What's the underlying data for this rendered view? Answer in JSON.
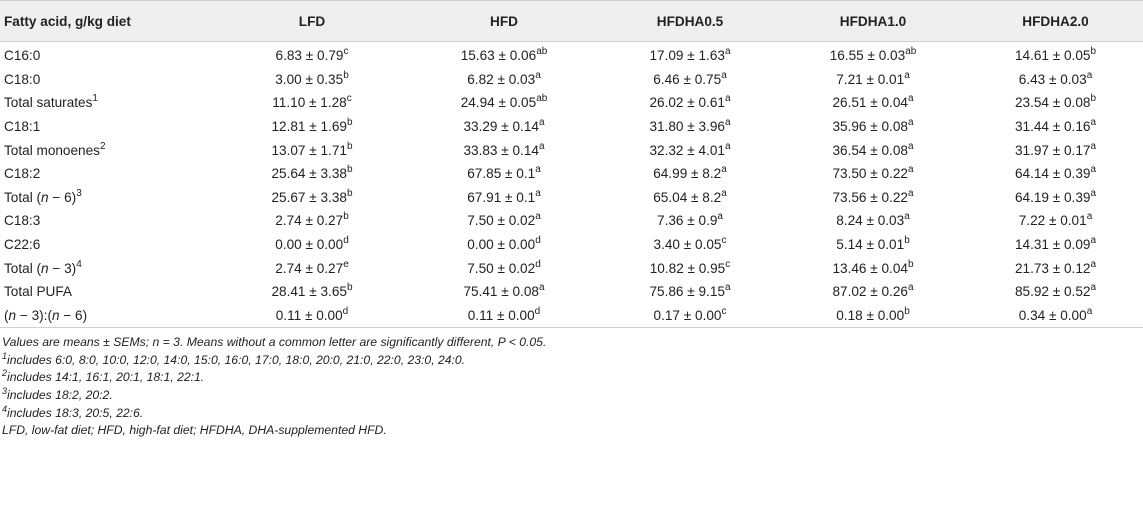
{
  "table": {
    "headers": [
      "Fatty acid, g/kg diet",
      "LFD",
      "HFD",
      "HFDHA0.5",
      "HFDHA1.0",
      "HFDHA2.0"
    ],
    "rows": [
      {
        "label": [
          "C16:0"
        ],
        "sup": "",
        "cells": [
          {
            "v": "6.83 ± 0.79",
            "s": "c"
          },
          {
            "v": "15.63 ± 0.06",
            "s": "ab"
          },
          {
            "v": "17.09 ± 1.63",
            "s": "a"
          },
          {
            "v": "16.55 ± 0.03",
            "s": "ab"
          },
          {
            "v": "14.61 ± 0.05",
            "s": "b"
          }
        ]
      },
      {
        "label": [
          "C18:0"
        ],
        "sup": "",
        "cells": [
          {
            "v": "3.00 ± 0.35",
            "s": "b"
          },
          {
            "v": "6.82 ± 0.03",
            "s": "a"
          },
          {
            "v": "6.46 ± 0.75",
            "s": "a"
          },
          {
            "v": "7.21 ± 0.01",
            "s": "a"
          },
          {
            "v": "6.43 ± 0.03",
            "s": "a"
          }
        ]
      },
      {
        "label": [
          "Total saturates"
        ],
        "sup": "1",
        "cells": [
          {
            "v": "11.10 ± 1.28",
            "s": "c"
          },
          {
            "v": "24.94 ± 0.05",
            "s": "ab"
          },
          {
            "v": "26.02 ± 0.61",
            "s": "a"
          },
          {
            "v": "26.51 ± 0.04",
            "s": "a"
          },
          {
            "v": "23.54 ± 0.08",
            "s": "b"
          }
        ]
      },
      {
        "label": [
          "C18:1"
        ],
        "sup": "",
        "cells": [
          {
            "v": "12.81 ± 1.69",
            "s": "b"
          },
          {
            "v": "33.29 ± 0.14",
            "s": "a"
          },
          {
            "v": "31.80 ± 3.96",
            "s": "a"
          },
          {
            "v": "35.96 ± 0.08",
            "s": "a"
          },
          {
            "v": "31.44 ± 0.16",
            "s": "a"
          }
        ]
      },
      {
        "label": [
          "Total monoenes"
        ],
        "sup": "2",
        "cells": [
          {
            "v": "13.07 ± 1.71",
            "s": "b"
          },
          {
            "v": "33.83 ± 0.14",
            "s": "a"
          },
          {
            "v": "32.32 ± 4.01",
            "s": "a"
          },
          {
            "v": "36.54 ± 0.08",
            "s": "a"
          },
          {
            "v": "31.97 ± 0.17",
            "s": "a"
          }
        ]
      },
      {
        "label": [
          "C18:2"
        ],
        "sup": "",
        "cells": [
          {
            "v": "25.64 ± 3.38",
            "s": "b"
          },
          {
            "v": "67.85 ± 0.1",
            "s": "a"
          },
          {
            "v": "64.99 ± 8.2",
            "s": "a"
          },
          {
            "v": "73.50 ± 0.22",
            "s": "a"
          },
          {
            "v": "64.14 ± 0.39",
            "s": "a"
          }
        ]
      },
      {
        "label": [
          "Total (",
          "n",
          " − 6)"
        ],
        "sup": "3",
        "cells": [
          {
            "v": "25.67 ± 3.38",
            "s": "b"
          },
          {
            "v": "67.91 ± 0.1",
            "s": "a"
          },
          {
            "v": "65.04 ± 8.2",
            "s": "a"
          },
          {
            "v": "73.56 ± 0.22",
            "s": "a"
          },
          {
            "v": "64.19 ± 0.39",
            "s": "a"
          }
        ]
      },
      {
        "label": [
          "C18:3"
        ],
        "sup": "",
        "cells": [
          {
            "v": "2.74 ± 0.27",
            "s": "b"
          },
          {
            "v": "7.50 ± 0.02",
            "s": "a"
          },
          {
            "v": "7.36 ± 0.9",
            "s": "a"
          },
          {
            "v": "8.24 ± 0.03",
            "s": "a"
          },
          {
            "v": "7.22 ± 0.01",
            "s": "a"
          }
        ]
      },
      {
        "label": [
          "C22:6"
        ],
        "sup": "",
        "cells": [
          {
            "v": "0.00 ± 0.00",
            "s": "d"
          },
          {
            "v": "0.00 ± 0.00",
            "s": "d"
          },
          {
            "v": "3.40 ± 0.05",
            "s": "c"
          },
          {
            "v": "5.14 ± 0.01",
            "s": "b"
          },
          {
            "v": "14.31 ± 0.09",
            "s": "a"
          }
        ]
      },
      {
        "label": [
          "Total (",
          "n",
          " − 3)"
        ],
        "sup": "4",
        "cells": [
          {
            "v": "2.74 ± 0.27",
            "s": "e"
          },
          {
            "v": "7.50 ± 0.02",
            "s": "d"
          },
          {
            "v": "10.82 ± 0.95",
            "s": "c"
          },
          {
            "v": "13.46 ± 0.04",
            "s": "b"
          },
          {
            "v": "21.73 ± 0.12",
            "s": "a"
          }
        ]
      },
      {
        "label": [
          "Total PUFA"
        ],
        "sup": "",
        "cells": [
          {
            "v": "28.41 ± 3.65",
            "s": "b"
          },
          {
            "v": "75.41 ± 0.08",
            "s": "a"
          },
          {
            "v": "75.86 ± 9.15",
            "s": "a"
          },
          {
            "v": "87.02 ± 0.26",
            "s": "a"
          },
          {
            "v": "85.92 ± 0.52",
            "s": "a"
          }
        ]
      },
      {
        "label": [
          "(",
          "n",
          " − 3):(",
          "n",
          " − 6)"
        ],
        "sup": "",
        "cells": [
          {
            "v": "0.11 ± 0.00",
            "s": "d"
          },
          {
            "v": "0.11 ± 0.00",
            "s": "d"
          },
          {
            "v": "0.17 ± 0.00",
            "s": "c"
          },
          {
            "v": "0.18 ± 0.00",
            "s": "b"
          },
          {
            "v": "0.34 ± 0.00",
            "s": "a"
          }
        ]
      }
    ]
  },
  "notes": {
    "main": "Values are means ± SEMs; n = 3. Means without a common letter are significantly different, P < 0.05.",
    "footnotes": [
      {
        "mark": "1",
        "text": "includes 6:0, 8:0, 10:0, 12:0, 14:0, 15:0, 16:0, 17:0, 18:0, 20:0, 21:0, 22:0, 23:0, 24:0."
      },
      {
        "mark": "2",
        "text": "includes 14:1, 16:1, 20:1, 18:1, 22:1."
      },
      {
        "mark": "3",
        "text": "includes 18:2, 20:2."
      },
      {
        "mark": "4",
        "text": "includes 18:3, 20:5, 22:6."
      }
    ],
    "abbreviations": "LFD, low-fat diet; HFD, high-fat diet; HFDHA, DHA-supplemented HFD."
  }
}
